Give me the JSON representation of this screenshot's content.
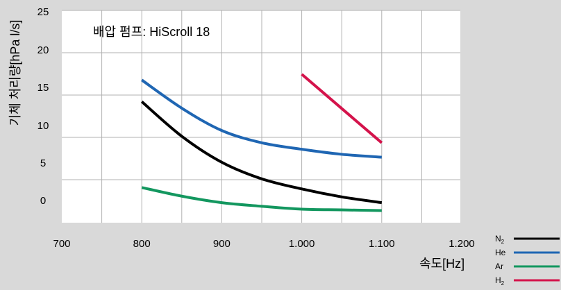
{
  "chart_data": {
    "type": "line",
    "annotation": "배압 펌프: HiScroll 18",
    "xlabel": "속도[Hz]",
    "ylabel": "기체 처리량[hPa l/s]",
    "x_ticks": [
      "700",
      "800",
      "900",
      "1.000",
      "1.100",
      "1.200"
    ],
    "y_ticks": [
      "0",
      "5",
      "10",
      "15",
      "20",
      "25"
    ],
    "xlim": [
      700,
      1200
    ],
    "ylim": [
      0,
      25
    ],
    "grid": true,
    "legend_position": "bottom-right",
    "series": [
      {
        "name": "N",
        "subscript": "2",
        "color": "#000000",
        "x": [
          800,
          850,
          900,
          950,
          1000,
          1050,
          1100
        ],
        "y": [
          16.2,
          11.4,
          7.8,
          5.5,
          4.1,
          3.0,
          2.2
        ]
      },
      {
        "name": "He",
        "subscript": "",
        "color": "#1f66b3",
        "x": [
          800,
          850,
          900,
          950,
          1000,
          1050,
          1100
        ],
        "y": [
          19.2,
          15.3,
          12.2,
          10.5,
          9.6,
          8.9,
          8.5
        ]
      },
      {
        "name": "Ar",
        "subscript": "",
        "color": "#13975f",
        "x": [
          800,
          850,
          900,
          950,
          1000,
          1050,
          1100
        ],
        "y": [
          4.3,
          3.1,
          2.2,
          1.7,
          1.3,
          1.2,
          1.1
        ]
      },
      {
        "name": "H",
        "subscript": "2",
        "color": "#d4134b",
        "x": [
          1000,
          1100
        ],
        "y": [
          20.0,
          10.5
        ]
      }
    ]
  }
}
